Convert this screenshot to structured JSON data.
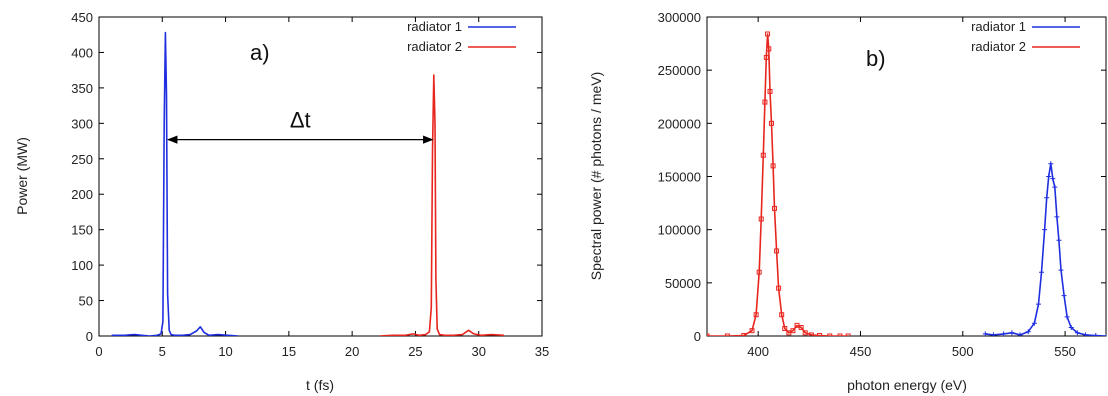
{
  "colors": {
    "radiator_1": "#1f2fe0",
    "radiator_2": "#e8261e",
    "axis": "#000000"
  },
  "chart_data": [
    {
      "type": "line",
      "panel_label": "a)",
      "xlabel": "t (fs)",
      "ylabel": "Power (MW)",
      "xlim": [
        0,
        35
      ],
      "ylim": [
        0,
        450
      ],
      "xticks": [
        0,
        5,
        10,
        15,
        20,
        25,
        30,
        35
      ],
      "yticks": [
        0,
        50,
        100,
        150,
        200,
        250,
        300,
        350,
        400,
        450
      ],
      "grid": false,
      "legend_position": "top-right",
      "annotation": {
        "text": "Δt",
        "from_x": 5.3,
        "to_x": 26.5,
        "y": 277
      },
      "series": [
        {
          "name": "radiator 1",
          "color_key": "radiator_1",
          "x": [
            1.0,
            2.0,
            2.8,
            3.4,
            4.0,
            4.6,
            4.9,
            5.05,
            5.15,
            5.25,
            5.33,
            5.42,
            5.55,
            5.7,
            6.0,
            6.6,
            7.2,
            7.7,
            8.0,
            8.3,
            8.7,
            9.4,
            10.2,
            11.0
          ],
          "y": [
            1,
            1,
            2,
            1,
            0,
            1,
            3,
            20,
            300,
            428,
            340,
            60,
            8,
            2,
            1,
            1,
            2,
            7,
            13,
            5,
            1,
            2,
            1,
            0
          ]
        },
        {
          "name": "radiator 2",
          "color_key": "radiator_2",
          "x": [
            22.2,
            23.2,
            24.2,
            24.8,
            25.3,
            25.8,
            26.1,
            26.25,
            26.35,
            26.45,
            26.55,
            26.62,
            26.72,
            26.9,
            27.3,
            28.0,
            28.7,
            29.2,
            29.6,
            30.2,
            31.0,
            32.0
          ],
          "y": [
            0,
            1,
            1,
            3,
            1,
            2,
            6,
            40,
            260,
            368,
            300,
            80,
            10,
            2,
            1,
            1,
            2,
            8,
            3,
            1,
            2,
            1
          ]
        }
      ]
    },
    {
      "type": "line",
      "panel_label": "b)",
      "xlabel": "photon energy (eV)",
      "ylabel": "Spectral power (# photons / meV)",
      "xlim": [
        375,
        570
      ],
      "ylim": [
        0,
        300000
      ],
      "xticks": [
        400,
        450,
        500,
        550
      ],
      "yticks": [
        0,
        50000,
        100000,
        150000,
        200000,
        250000,
        300000
      ],
      "grid": false,
      "legend_position": "top-right",
      "series": [
        {
          "name": "radiator 1",
          "color_key": "radiator_1",
          "marker": "plus",
          "x": [
            511,
            515,
            520,
            524,
            528,
            532,
            535,
            537,
            538.5,
            540,
            541,
            542,
            543,
            544,
            545,
            546,
            547,
            548,
            549.5,
            551,
            553,
            556,
            560,
            565,
            570
          ],
          "y": [
            2000,
            1000,
            2000,
            3000,
            1000,
            4000,
            12000,
            30000,
            60000,
            100000,
            130000,
            150000,
            162000,
            148000,
            140000,
            112000,
            90000,
            62000,
            38000,
            18000,
            8000,
            3000,
            1000,
            500,
            0
          ]
        },
        {
          "name": "radiator 2",
          "color_key": "radiator_2",
          "marker": "square",
          "x": [
            375,
            385,
            393,
            397,
            399,
            400.5,
            401.5,
            402.5,
            403.3,
            404,
            404.6,
            405.2,
            405.8,
            406.5,
            407.3,
            408,
            409,
            410,
            411.5,
            413,
            415,
            417,
            419,
            421,
            423,
            426,
            430,
            435,
            440,
            444
          ],
          "y": [
            0,
            0,
            500,
            5000,
            20000,
            60000,
            110000,
            170000,
            220000,
            262000,
            284000,
            270000,
            230000,
            200000,
            160000,
            120000,
            80000,
            45000,
            20000,
            7000,
            3000,
            5000,
            10000,
            8000,
            3000,
            1000,
            500,
            0,
            0,
            0
          ]
        }
      ]
    }
  ]
}
